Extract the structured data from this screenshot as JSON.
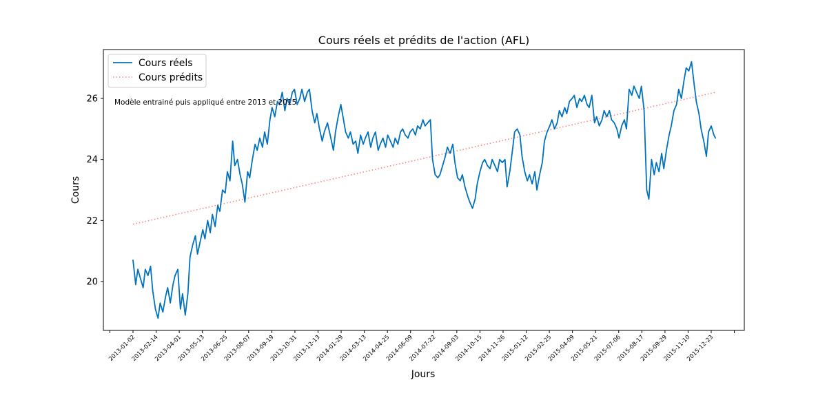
{
  "chart_data": {
    "type": "line",
    "title": "Cours réels et prédits de l'action (AFL)",
    "xlabel": "Jours",
    "ylabel": "Cours",
    "ylim": [
      18.4,
      27.6
    ],
    "yticks": [
      20,
      22,
      24,
      26
    ],
    "grid": false,
    "legend_position": "top-left",
    "annotation": "Modèle entrainé puis appliqué entre 2013 et 2015",
    "x_tick_labels": [
      "2013-01-02",
      "2013-02-14",
      "2013-04-01",
      "2013-05-13",
      "2013-06-25",
      "2013-08-07",
      "2013-09-19",
      "2013-10-31",
      "2013-12-13",
      "2014-01-29",
      "2014-03-13",
      "2014-04-25",
      "2014-06-09",
      "2014-07-22",
      "2014-09-03",
      "2014-10-15",
      "2014-11-26",
      "2015-01-12",
      "2015-02-25",
      "2015-04-09",
      "2015-05-21",
      "2015-07-06",
      "2015-08-17",
      "2015-09-29",
      "2015-11-10",
      "2015-12-23"
    ],
    "series": [
      {
        "name": "Cours réels",
        "color": "#0072BD",
        "style": "solid",
        "points": [
          [
            "2013-01-02",
            20.7
          ],
          [
            "2013-01-07",
            19.9
          ],
          [
            "2013-01-11",
            20.4
          ],
          [
            "2013-01-16",
            20.1
          ],
          [
            "2013-01-21",
            19.8
          ],
          [
            "2013-01-25",
            20.4
          ],
          [
            "2013-01-30",
            20.2
          ],
          [
            "2013-02-04",
            20.5
          ],
          [
            "2013-02-08",
            19.7
          ],
          [
            "2013-02-13",
            19.1
          ],
          [
            "2013-02-18",
            18.8
          ],
          [
            "2013-02-22",
            19.3
          ],
          [
            "2013-02-27",
            19.0
          ],
          [
            "2013-03-04",
            19.5
          ],
          [
            "2013-03-08",
            19.8
          ],
          [
            "2013-03-13",
            19.3
          ],
          [
            "2013-03-18",
            19.9
          ],
          [
            "2013-03-22",
            20.2
          ],
          [
            "2013-03-27",
            20.4
          ],
          [
            "2013-04-01",
            19.1
          ],
          [
            "2013-04-05",
            19.6
          ],
          [
            "2013-04-10",
            18.9
          ],
          [
            "2013-04-15",
            19.6
          ],
          [
            "2013-04-19",
            20.8
          ],
          [
            "2013-04-24",
            21.2
          ],
          [
            "2013-04-29",
            21.5
          ],
          [
            "2013-05-03",
            20.9
          ],
          [
            "2013-05-08",
            21.3
          ],
          [
            "2013-05-13",
            21.7
          ],
          [
            "2013-05-17",
            21.4
          ],
          [
            "2013-05-22",
            22.0
          ],
          [
            "2013-05-27",
            21.6
          ],
          [
            "2013-05-31",
            22.2
          ],
          [
            "2013-06-05",
            21.8
          ],
          [
            "2013-06-10",
            22.5
          ],
          [
            "2013-06-14",
            22.3
          ],
          [
            "2013-06-19",
            23.0
          ],
          [
            "2013-06-24",
            22.9
          ],
          [
            "2013-06-28",
            23.6
          ],
          [
            "2013-07-03",
            23.3
          ],
          [
            "2013-07-08",
            24.6
          ],
          [
            "2013-07-12",
            23.8
          ],
          [
            "2013-07-17",
            24.0
          ],
          [
            "2013-07-22",
            23.5
          ],
          [
            "2013-07-26",
            23.2
          ],
          [
            "2013-07-31",
            22.6
          ],
          [
            "2013-08-05",
            23.6
          ],
          [
            "2013-08-09",
            23.4
          ],
          [
            "2013-08-14",
            24.0
          ],
          [
            "2013-08-19",
            24.5
          ],
          [
            "2013-08-23",
            24.3
          ],
          [
            "2013-08-28",
            24.7
          ],
          [
            "2013-09-02",
            24.4
          ],
          [
            "2013-09-06",
            24.9
          ],
          [
            "2013-09-11",
            24.5
          ],
          [
            "2013-09-16",
            25.3
          ],
          [
            "2013-09-20",
            25.7
          ],
          [
            "2013-09-25",
            25.4
          ],
          [
            "2013-09-30",
            25.9
          ],
          [
            "2013-10-04",
            25.8
          ],
          [
            "2013-10-09",
            26.2
          ],
          [
            "2013-10-14",
            25.6
          ],
          [
            "2013-10-18",
            26.0
          ],
          [
            "2013-10-23",
            25.8
          ],
          [
            "2013-10-28",
            26.2
          ],
          [
            "2013-11-01",
            26.3
          ],
          [
            "2013-11-06",
            25.8
          ],
          [
            "2013-11-11",
            26.0
          ],
          [
            "2013-11-15",
            26.3
          ],
          [
            "2013-11-20",
            25.9
          ],
          [
            "2013-11-25",
            26.2
          ],
          [
            "2013-11-29",
            26.3
          ],
          [
            "2013-12-04",
            25.6
          ],
          [
            "2013-12-09",
            25.2
          ],
          [
            "2013-12-13",
            25.5
          ],
          [
            "2013-12-18",
            25.0
          ],
          [
            "2013-12-23",
            24.6
          ],
          [
            "2013-12-27",
            24.9
          ],
          [
            "2014-01-02",
            25.2
          ],
          [
            "2014-01-07",
            24.8
          ],
          [
            "2014-01-13",
            24.3
          ],
          [
            "2014-01-17",
            24.9
          ],
          [
            "2014-01-22",
            25.4
          ],
          [
            "2014-01-27",
            25.8
          ],
          [
            "2014-01-31",
            25.4
          ],
          [
            "2014-02-05",
            24.9
          ],
          [
            "2014-02-10",
            24.7
          ],
          [
            "2014-02-14",
            24.9
          ],
          [
            "2014-02-19",
            24.5
          ],
          [
            "2014-02-24",
            24.6
          ],
          [
            "2014-02-28",
            24.2
          ],
          [
            "2014-03-05",
            24.8
          ],
          [
            "2014-03-10",
            24.5
          ],
          [
            "2014-03-14",
            24.7
          ],
          [
            "2014-03-19",
            24.9
          ],
          [
            "2014-03-24",
            24.4
          ],
          [
            "2014-03-28",
            24.7
          ],
          [
            "2014-04-02",
            24.9
          ],
          [
            "2014-04-07",
            24.3
          ],
          [
            "2014-04-11",
            24.5
          ],
          [
            "2014-04-16",
            24.7
          ],
          [
            "2014-04-21",
            24.4
          ],
          [
            "2014-04-25",
            24.8
          ],
          [
            "2014-04-30",
            24.6
          ],
          [
            "2014-05-05",
            24.4
          ],
          [
            "2014-05-09",
            24.7
          ],
          [
            "2014-05-14",
            24.5
          ],
          [
            "2014-05-19",
            24.9
          ],
          [
            "2014-05-23",
            25.0
          ],
          [
            "2014-05-28",
            24.8
          ],
          [
            "2014-06-02",
            24.7
          ],
          [
            "2014-06-06",
            24.9
          ],
          [
            "2014-06-11",
            25.0
          ],
          [
            "2014-06-16",
            24.8
          ],
          [
            "2014-06-20",
            25.1
          ],
          [
            "2014-06-25",
            25.0
          ],
          [
            "2014-06-30",
            25.3
          ],
          [
            "2014-07-04",
            25.1
          ],
          [
            "2014-07-09",
            25.2
          ],
          [
            "2014-07-14",
            25.3
          ],
          [
            "2014-07-18",
            24.0
          ],
          [
            "2014-07-23",
            23.5
          ],
          [
            "2014-07-28",
            23.4
          ],
          [
            "2014-08-01",
            23.5
          ],
          [
            "2014-08-06",
            23.8
          ],
          [
            "2014-08-11",
            24.1
          ],
          [
            "2014-08-15",
            24.4
          ],
          [
            "2014-08-20",
            24.2
          ],
          [
            "2014-08-25",
            24.5
          ],
          [
            "2014-08-29",
            23.9
          ],
          [
            "2014-09-03",
            23.4
          ],
          [
            "2014-09-08",
            23.3
          ],
          [
            "2014-09-12",
            23.5
          ],
          [
            "2014-09-17",
            23.1
          ],
          [
            "2014-09-22",
            22.8
          ],
          [
            "2014-09-26",
            22.6
          ],
          [
            "2014-10-01",
            22.4
          ],
          [
            "2014-10-06",
            22.7
          ],
          [
            "2014-10-10",
            23.2
          ],
          [
            "2014-10-15",
            23.6
          ],
          [
            "2014-10-20",
            23.9
          ],
          [
            "2014-10-24",
            24.0
          ],
          [
            "2014-10-29",
            23.8
          ],
          [
            "2014-11-03",
            23.7
          ],
          [
            "2014-11-07",
            24.0
          ],
          [
            "2014-11-12",
            23.8
          ],
          [
            "2014-11-17",
            23.6
          ],
          [
            "2014-11-21",
            24.0
          ],
          [
            "2014-11-26",
            23.9
          ],
          [
            "2014-12-01",
            24.0
          ],
          [
            "2014-12-05",
            23.1
          ],
          [
            "2014-12-10",
            23.6
          ],
          [
            "2014-12-15",
            24.3
          ],
          [
            "2014-12-19",
            24.9
          ],
          [
            "2014-12-24",
            25.0
          ],
          [
            "2014-12-29",
            24.8
          ],
          [
            "2015-01-02",
            24.1
          ],
          [
            "2015-01-07",
            23.6
          ],
          [
            "2015-01-12",
            23.3
          ],
          [
            "2015-01-16",
            23.5
          ],
          [
            "2015-01-21",
            23.2
          ],
          [
            "2015-01-26",
            23.6
          ],
          [
            "2015-01-30",
            23.0
          ],
          [
            "2015-02-04",
            23.5
          ],
          [
            "2015-02-09",
            23.9
          ],
          [
            "2015-02-13",
            24.6
          ],
          [
            "2015-02-18",
            24.9
          ],
          [
            "2015-02-23",
            25.1
          ],
          [
            "2015-02-27",
            25.3
          ],
          [
            "2015-03-04",
            25.0
          ],
          [
            "2015-03-09",
            25.2
          ],
          [
            "2015-03-13",
            25.6
          ],
          [
            "2015-03-18",
            25.4
          ],
          [
            "2015-03-23",
            25.7
          ],
          [
            "2015-03-27",
            25.5
          ],
          [
            "2015-04-01",
            25.9
          ],
          [
            "2015-04-06",
            26.0
          ],
          [
            "2015-04-10",
            26.1
          ],
          [
            "2015-04-15",
            25.7
          ],
          [
            "2015-04-20",
            26.0
          ],
          [
            "2015-04-24",
            25.9
          ],
          [
            "2015-04-29",
            26.1
          ],
          [
            "2015-05-04",
            25.8
          ],
          [
            "2015-05-08",
            25.7
          ],
          [
            "2015-05-13",
            26.1
          ],
          [
            "2015-05-18",
            25.2
          ],
          [
            "2015-05-22",
            25.4
          ],
          [
            "2015-05-27",
            25.1
          ],
          [
            "2015-06-01",
            25.3
          ],
          [
            "2015-06-05",
            25.6
          ],
          [
            "2015-06-10",
            25.4
          ],
          [
            "2015-06-15",
            25.6
          ],
          [
            "2015-06-19",
            25.3
          ],
          [
            "2015-06-24",
            25.2
          ],
          [
            "2015-06-29",
            25.0
          ],
          [
            "2015-07-03",
            24.7
          ],
          [
            "2015-07-08",
            25.1
          ],
          [
            "2015-07-13",
            25.3
          ],
          [
            "2015-07-17",
            25.0
          ],
          [
            "2015-07-22",
            26.3
          ],
          [
            "2015-07-27",
            26.1
          ],
          [
            "2015-07-31",
            26.4
          ],
          [
            "2015-08-05",
            26.2
          ],
          [
            "2015-08-10",
            26.0
          ],
          [
            "2015-08-14",
            26.4
          ],
          [
            "2015-08-19",
            25.6
          ],
          [
            "2015-08-24",
            23.0
          ],
          [
            "2015-08-28",
            22.7
          ],
          [
            "2015-09-02",
            24.0
          ],
          [
            "2015-09-07",
            23.5
          ],
          [
            "2015-09-11",
            23.9
          ],
          [
            "2015-09-16",
            23.6
          ],
          [
            "2015-09-21",
            24.2
          ],
          [
            "2015-09-25",
            23.7
          ],
          [
            "2015-09-30",
            24.3
          ],
          [
            "2015-10-05",
            24.8
          ],
          [
            "2015-10-09",
            25.1
          ],
          [
            "2015-10-14",
            25.6
          ],
          [
            "2015-10-19",
            25.8
          ],
          [
            "2015-10-23",
            26.3
          ],
          [
            "2015-10-28",
            26.0
          ],
          [
            "2015-11-02",
            26.6
          ],
          [
            "2015-11-06",
            27.0
          ],
          [
            "2015-11-11",
            26.9
          ],
          [
            "2015-11-16",
            27.2
          ],
          [
            "2015-11-20",
            26.6
          ],
          [
            "2015-11-25",
            25.9
          ],
          [
            "2015-11-30",
            25.5
          ],
          [
            "2015-12-04",
            25.0
          ],
          [
            "2015-12-09",
            24.6
          ],
          [
            "2015-12-14",
            24.1
          ],
          [
            "2015-12-18",
            24.9
          ],
          [
            "2015-12-23",
            25.1
          ],
          [
            "2015-12-28",
            24.8
          ],
          [
            "2015-12-31",
            24.7
          ]
        ]
      },
      {
        "name": "Cours prédits",
        "color": "#FF8080",
        "style": "dotted",
        "points": [
          [
            "2013-01-02",
            21.88
          ],
          [
            "2015-12-31",
            26.2
          ]
        ]
      }
    ]
  }
}
